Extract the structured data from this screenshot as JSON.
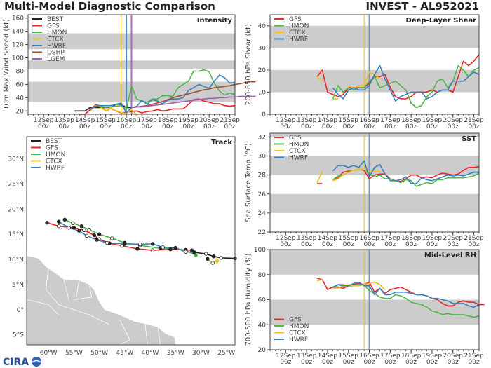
{
  "header": {
    "title": "Multi-Model Diagnostic Comparison",
    "storm": "INVEST - AL952021"
  },
  "logo": {
    "text": "CIRA"
  },
  "colors": {
    "BEST": "#222222",
    "GFS": "#e8262a",
    "HMON": "#4cb848",
    "CTCX": "#f5c016",
    "HWRF": "#3a7fc1",
    "DSHP": "#9c532d",
    "LGEM": "#a25fb3",
    "band": "#cccccc",
    "land": "#cccccc"
  },
  "time_axis": {
    "xlim": [
      "2021-09-11T06",
      "2021-09-21T06"
    ],
    "ticks": [
      {
        "date": "2021-09-12T00",
        "label": "12Sep",
        "sub": "00z"
      },
      {
        "date": "2021-09-13T00",
        "label": "13Sep",
        "sub": "00z"
      },
      {
        "date": "2021-09-14T00",
        "label": "14Sep",
        "sub": "00z"
      },
      {
        "date": "2021-09-15T00",
        "label": "15Sep",
        "sub": "00z"
      },
      {
        "date": "2021-09-16T00",
        "label": "16Sep",
        "sub": "00z"
      },
      {
        "date": "2021-09-17T00",
        "label": "17Sep",
        "sub": "00z"
      },
      {
        "date": "2021-09-18T00",
        "label": "18Sep",
        "sub": "00z"
      },
      {
        "date": "2021-09-19T00",
        "label": "19Sep",
        "sub": "00z"
      },
      {
        "date": "2021-09-20T00",
        "label": "20Sep",
        "sub": "00z"
      },
      {
        "date": "2021-09-21T00",
        "label": "21Sep",
        "sub": "00z"
      }
    ],
    "step_hours": 6
  },
  "chart_data": [
    {
      "id": "intensity",
      "type": "line",
      "title": "Intensity",
      "ylabel": "10m Max Wind Speed (kt)",
      "ylim": [
        15,
        165
      ],
      "yticks": [
        20,
        40,
        60,
        80,
        100,
        120,
        140,
        160
      ],
      "bands": [
        [
          34,
          64
        ],
        [
          83,
          96
        ],
        [
          113,
          137
        ]
      ],
      "vlines": [
        {
          "date": "2021-09-15T18",
          "model": "CTCX"
        },
        {
          "date": "2021-09-16T00",
          "model": "HWRF"
        },
        {
          "date": "2021-09-16T06",
          "model": "LGEM"
        }
      ],
      "legend": [
        "BEST",
        "GFS",
        "HMON",
        "CTCX",
        "HWRF",
        "DSHP",
        "LGEM"
      ],
      "legend_loc": "upper-left",
      "series": [
        {
          "name": "BEST",
          "start": "2021-09-13T12",
          "values": [
            20,
            20,
            20,
            25,
            25,
            25,
            25,
            25,
            30,
            30,
            25,
            25
          ]
        },
        {
          "name": "GFS",
          "start": "2021-09-13T18",
          "values": [
            15,
            15,
            22,
            29,
            28,
            20,
            24,
            20,
            17,
            18,
            19,
            20,
            17,
            19,
            20,
            22,
            20,
            21,
            23,
            23,
            23,
            30,
            37,
            38,
            35,
            33,
            31,
            31,
            28,
            27,
            28
          ]
        },
        {
          "name": "HMON",
          "start": "2021-09-14T06",
          "values": [
            20,
            27,
            27,
            25,
            26,
            27,
            28,
            22,
            58,
            38,
            35,
            33,
            38,
            38,
            43,
            43,
            42,
            55,
            60,
            65,
            80,
            80,
            82,
            79,
            62,
            50,
            44,
            47,
            45
          ]
        },
        {
          "name": "CTCX",
          "start": "2021-09-14T06",
          "values": [
            20,
            28,
            26,
            20,
            25,
            20,
            18,
            16,
            22,
            10
          ]
        },
        {
          "name": "HWRF",
          "start": "2021-09-14T06",
          "values": [
            22,
            27,
            28,
            28,
            28,
            30,
            32,
            17,
            25,
            27,
            36,
            30,
            37,
            35,
            31,
            36,
            38,
            38,
            40,
            51,
            55,
            60,
            57,
            54,
            65,
            74,
            70,
            62,
            63
          ]
        },
        {
          "name": "DSHP",
          "start": "2021-09-16T06",
          "values": [
            25,
            26,
            27,
            28,
            30,
            32,
            34,
            37,
            40,
            42,
            44,
            46,
            48,
            50,
            52,
            53,
            55,
            56,
            57,
            58,
            60,
            61,
            63,
            64,
            64
          ]
        },
        {
          "name": "LGEM",
          "start": "2021-09-16T06",
          "values": [
            25,
            26,
            26,
            27,
            28,
            29,
            30,
            31,
            32,
            33,
            34,
            35,
            36,
            37,
            38,
            39,
            39,
            40,
            40,
            41,
            41,
            42,
            42,
            42,
            42
          ]
        }
      ]
    },
    {
      "id": "shear",
      "type": "line",
      "title": "Deep-Layer Shear",
      "ylabel": "200-850 hPa Shear (kt)",
      "ylim": [
        0,
        45
      ],
      "yticks": [
        0,
        10,
        20,
        30,
        40
      ],
      "bands": [
        [
          10,
          20
        ],
        [
          30,
          40
        ]
      ],
      "vlines": [
        {
          "date": "2021-09-15T18",
          "model": "CTCX"
        },
        {
          "date": "2021-09-16T00",
          "model": "HWRF"
        }
      ],
      "legend": [
        "GFS",
        "HMON",
        "CTCX",
        "HWRF"
      ],
      "legend_loc": "upper-left",
      "series": [
        {
          "name": "GFS",
          "start": "2021-09-13T12",
          "values": [
            17,
            20,
            10,
            9,
            8,
            9,
            12,
            12,
            12,
            12,
            14,
            17,
            17,
            18,
            12,
            8,
            7,
            7,
            8,
            10,
            10,
            10,
            11,
            10,
            11,
            11,
            10,
            17,
            24,
            22,
            24,
            27
          ]
        },
        {
          "name": "HMON",
          "start": "2021-09-14T06",
          "values": [
            7,
            13,
            10,
            12,
            11,
            12,
            12,
            15,
            17,
            12,
            13,
            14,
            15,
            13,
            11,
            5,
            3,
            4,
            8,
            10,
            15,
            16,
            12,
            15,
            22,
            20,
            17,
            20,
            21
          ]
        },
        {
          "name": "CTCX",
          "start": "2021-09-13T12",
          "values": [
            17,
            15,
            null,
            7,
            7,
            null,
            13,
            12,
            13,
            13,
            19,
            18,
            16
          ]
        },
        {
          "name": "HWRF",
          "start": "2021-09-14T06",
          "values": [
            12,
            9,
            7,
            11,
            12,
            11,
            11,
            13,
            18,
            22,
            16,
            11,
            6,
            8,
            9,
            10,
            10,
            10,
            7,
            8,
            10,
            11,
            11,
            15,
            15,
            15,
            17,
            19,
            18
          ]
        }
      ]
    },
    {
      "id": "sst",
      "type": "line",
      "title": "SST",
      "ylabel": "Sea Surface Temp (°C)",
      "ylim": [
        22,
        32.4
      ],
      "yticks": [
        22,
        24,
        26,
        28,
        30,
        32
      ],
      "bands": [
        [
          24,
          26
        ],
        [
          28,
          30
        ],
        [
          32,
          32.4
        ]
      ],
      "vlines": [
        {
          "date": "2021-09-15T18",
          "model": "CTCX"
        },
        {
          "date": "2021-09-16T00",
          "model": "HWRF"
        }
      ],
      "legend": [
        "GFS",
        "HMON",
        "CTCX",
        "HWRF"
      ],
      "legend_loc": "upper-left",
      "series": [
        {
          "name": "GFS",
          "start": "2021-09-13T12",
          "values": [
            27.1,
            27.1,
            null,
            27.5,
            27.7,
            28.3,
            28.4,
            28.5,
            28.6,
            28.5,
            27.6,
            28.0,
            28.1,
            28.1,
            27.6,
            27.4,
            27.3,
            27.6,
            28.0,
            28.0,
            27.7,
            27.8,
            27.7,
            28.0,
            28.2,
            28.1,
            28.0,
            28.1,
            28.5,
            28.8,
            28.8,
            28.9
          ]
        },
        {
          "name": "HMON",
          "start": "2021-09-14T06",
          "values": [
            27.5,
            27.9,
            28.0,
            28.3,
            28.5,
            28.6,
            28.6,
            28.1,
            27.8,
            28.0,
            27.6,
            27.6,
            27.4,
            27.2,
            27.5,
            27.4,
            26.8,
            27.0,
            27.2,
            27.1,
            27.5,
            27.5,
            27.7,
            27.7,
            27.7,
            27.7,
            27.8,
            27.9,
            28.2
          ]
        },
        {
          "name": "CTCX",
          "start": "2021-09-13T12",
          "values": [
            27.2,
            28.4,
            null,
            27.4,
            27.6,
            28.0,
            28.3,
            28.5,
            28.6,
            28.6,
            28.4,
            28.4,
            28.4
          ]
        },
        {
          "name": "HWRF",
          "start": "2021-09-14T06",
          "values": [
            28.4,
            29.0,
            29.0,
            28.8,
            29.0,
            28.8,
            29.5,
            27.8,
            28.8,
            29.1,
            28.1,
            27.4,
            27.4,
            27.5,
            27.8,
            27.1,
            27.1,
            27.7,
            27.5,
            27.4,
            27.6,
            27.8,
            28.0,
            27.9,
            28.0,
            27.9,
            28.1,
            28.3,
            28.3
          ]
        }
      ]
    },
    {
      "id": "rh",
      "type": "line",
      "title": "Mid-Level RH",
      "ylabel": "700-500 hPa Humidity (%)",
      "ylim": [
        20,
        100
      ],
      "yticks": [
        20,
        40,
        60,
        80,
        100
      ],
      "bands": [
        [
          40,
          60
        ],
        [
          80,
          100
        ]
      ],
      "vlines": [
        {
          "date": "2021-09-15T18",
          "model": "CTCX"
        },
        {
          "date": "2021-09-16T00",
          "model": "HWRF"
        }
      ],
      "legend": [
        "GFS",
        "HMON",
        "CTCX",
        "HWRF"
      ],
      "legend_loc": "lower-left",
      "series": [
        {
          "name": "GFS",
          "start": "2021-09-13T12",
          "values": [
            77,
            76,
            68,
            70,
            70,
            69,
            71,
            72,
            73,
            72,
            74,
            66,
            69,
            65,
            68,
            69,
            70,
            68,
            66,
            64,
            64,
            63,
            61,
            60,
            57,
            55,
            55,
            58,
            59,
            58,
            58,
            56,
            56
          ]
        },
        {
          "name": "HMON",
          "start": "2021-09-14T06",
          "values": [
            69,
            72,
            72,
            71,
            71,
            72,
            72,
            67,
            65,
            62,
            61,
            61,
            64,
            63,
            61,
            58,
            57,
            56,
            54,
            51,
            50,
            48,
            49,
            48,
            48,
            48,
            47,
            46,
            47
          ]
        },
        {
          "name": "CTCX",
          "start": "2021-09-13T12",
          "values": [
            75,
            76,
            null,
            69,
            69,
            71,
            72,
            71,
            71,
            72,
            73,
            74,
            72,
            68
          ]
        },
        {
          "name": "HWRF",
          "start": "2021-09-14T06",
          "values": [
            70,
            72,
            71,
            71,
            73,
            74,
            71,
            71,
            64,
            69,
            64,
            64,
            66,
            66,
            66,
            65,
            64,
            64,
            63,
            61,
            61,
            60,
            59,
            57,
            57,
            57,
            55,
            54,
            56
          ]
        }
      ]
    },
    {
      "id": "track",
      "type": "scatter",
      "title": "Track",
      "xlim": [
        -64.3,
        -23.3
      ],
      "ylim": [
        -7,
        34.4
      ],
      "xticks": [
        {
          "v": -60,
          "label": "60°W"
        },
        {
          "v": -55,
          "label": "55°W"
        },
        {
          "v": -50,
          "label": "50°W"
        },
        {
          "v": -45,
          "label": "45°W"
        },
        {
          "v": -40,
          "label": "40°W"
        },
        {
          "v": -35,
          "label": "35°W"
        },
        {
          "v": -30,
          "label": "30°W"
        },
        {
          "v": -25,
          "label": "25°W"
        }
      ],
      "yticks": [
        {
          "v": 30,
          "label": "30°N"
        },
        {
          "v": 25,
          "label": "25°N"
        },
        {
          "v": 20,
          "label": "20°N"
        },
        {
          "v": 15,
          "label": "15°N"
        },
        {
          "v": 10,
          "label": "10°N"
        },
        {
          "v": 5,
          "label": "5°N"
        },
        {
          "v": 0,
          "label": "0°"
        },
        {
          "v": -5,
          "label": "5°S"
        }
      ],
      "legend": [
        "BEST",
        "GFS",
        "HMON",
        "CTCX",
        "HWRF"
      ],
      "legend_loc": "upper-left",
      "series": [
        {
          "name": "GFS",
          "points": [
            [
              -60.3,
              17.3
            ],
            [
              -58,
              16.6
            ],
            [
              -55,
              16.3
            ],
            [
              -53,
              15.8
            ],
            [
              -51,
              14.8
            ],
            [
              -50,
              14
            ],
            [
              -48,
              13.2
            ],
            [
              -45.5,
              12.7
            ],
            [
              -42.5,
              12.1
            ],
            [
              -39.5,
              11.8
            ],
            [
              -36,
              12
            ],
            [
              -33,
              11.9
            ],
            [
              -31.8,
              11.8
            ]
          ]
        },
        {
          "name": "HMON",
          "points": [
            [
              -56.8,
              17.9
            ],
            [
              -55.2,
              17.2
            ],
            [
              -53.5,
              16.6
            ],
            [
              -52,
              15.9
            ],
            [
              -50,
              15
            ],
            [
              -47.5,
              14.2
            ],
            [
              -45,
              13.3
            ],
            [
              -42,
              12.8
            ],
            [
              -38,
              12.2
            ],
            [
              -35,
              12.2
            ],
            [
              -33,
              11.8
            ],
            [
              -31,
              10.8
            ]
          ]
        },
        {
          "name": "HWRF",
          "points": [
            [
              -58,
              17.5
            ],
            [
              -56,
              16.3
            ],
            [
              -54,
              15.7
            ],
            [
              -52.5,
              14.7
            ],
            [
              -50.5,
              13.9
            ],
            [
              -48.5,
              13.3
            ],
            [
              -45,
              13.1
            ],
            [
              -42,
              13
            ],
            [
              -39.5,
              13.1
            ],
            [
              -37.5,
              12.4
            ],
            [
              -35,
              12.3
            ],
            [
              -33,
              11.5
            ],
            [
              -31.3,
              11.4
            ]
          ]
        },
        {
          "name": "BEST",
          "points": [
            [
              -31.3,
              11.4
            ],
            [
              -29,
              11.1
            ],
            [
              -27.5,
              10.6
            ],
            [
              -26,
              10.3
            ],
            [
              -23.3,
              10.2
            ]
          ]
        },
        {
          "name": "CTCX",
          "points": [
            [
              -28.7,
              10.1
            ],
            [
              -27.7,
              9.3
            ],
            [
              -26.8,
              9.7
            ]
          ]
        }
      ]
    }
  ]
}
